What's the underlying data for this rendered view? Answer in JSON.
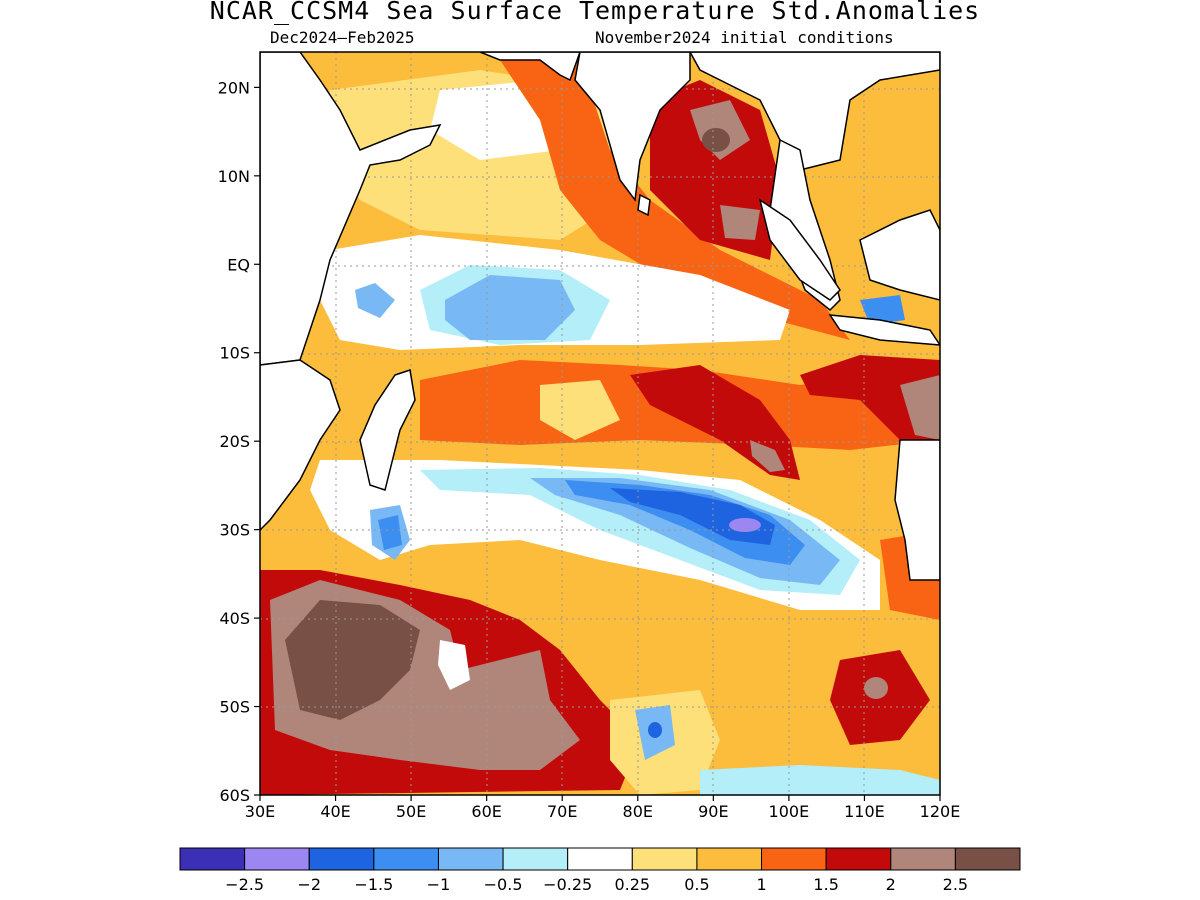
{
  "title": "NCAR_CCSM4 Sea Surface Temperature Std.Anomalies",
  "period": "Dec2024–Feb2025",
  "initial_conditions": "November2024 initial conditions",
  "map": {
    "lon_range": [
      30,
      120
    ],
    "lat_range": [
      -60,
      24
    ],
    "lat_ticks": [
      {
        "value": 20,
        "label": "20N"
      },
      {
        "value": 10,
        "label": "10N"
      },
      {
        "value": 0,
        "label": "EQ"
      },
      {
        "value": -10,
        "label": "10S"
      },
      {
        "value": -20,
        "label": "20S"
      },
      {
        "value": -30,
        "label": "30S"
      },
      {
        "value": -40,
        "label": "40S"
      },
      {
        "value": -50,
        "label": "50S"
      },
      {
        "value": -60,
        "label": "60S"
      }
    ],
    "lon_ticks": [
      {
        "value": 30,
        "label": "30E"
      },
      {
        "value": 40,
        "label": "40E"
      },
      {
        "value": 50,
        "label": "50E"
      },
      {
        "value": 60,
        "label": "60E"
      },
      {
        "value": 70,
        "label": "70E"
      },
      {
        "value": 80,
        "label": "80E"
      },
      {
        "value": 90,
        "label": "90E"
      },
      {
        "value": 100,
        "label": "100E"
      },
      {
        "value": 110,
        "label": "110E"
      },
      {
        "value": 120,
        "label": "120E"
      }
    ],
    "gridlines": "dotted"
  },
  "colorbar": {
    "colors": [
      "#3b2fb5",
      "#9b86f2",
      "#1e64e0",
      "#3c8ef0",
      "#78b8f5",
      "#b4eef8",
      "#ffffff",
      "#fde07a",
      "#fcbc3c",
      "#f86414",
      "#c30a0a",
      "#b0857a",
      "#785046"
    ],
    "labels": [
      "−2.5",
      "−2",
      "−1.5",
      "−1",
      "−0.5",
      "−0.25",
      "0.25",
      "0.5",
      "1",
      "1.5",
      "2",
      "2.5"
    ]
  }
}
